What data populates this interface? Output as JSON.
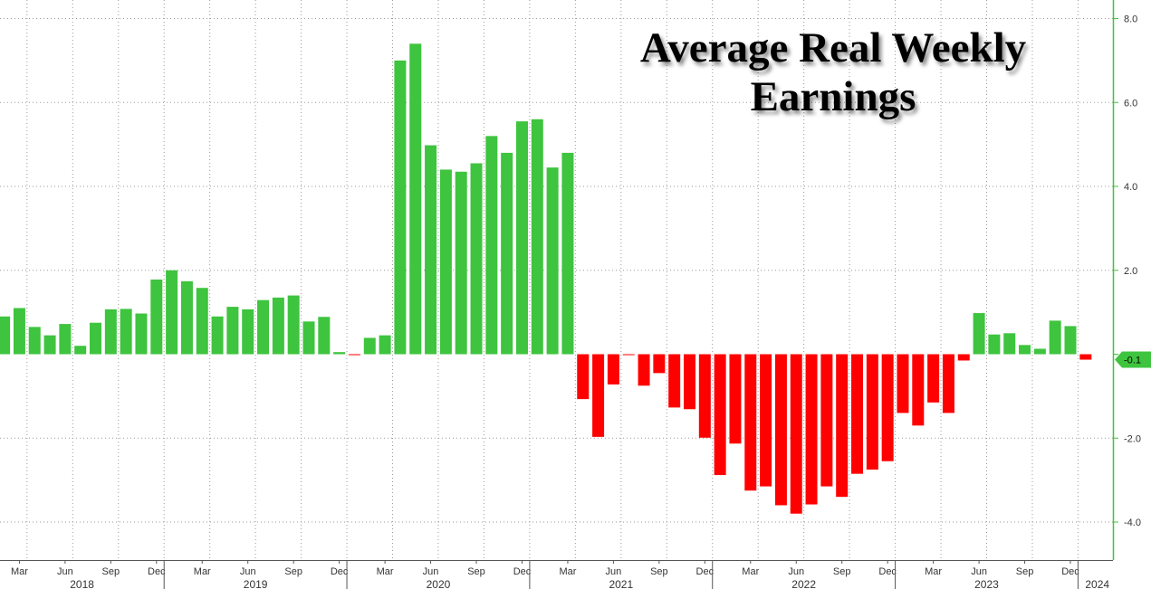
{
  "chart_data": {
    "type": "bar",
    "title_lines": [
      "Average Real Weekly",
      "Earnings"
    ],
    "ylim": [
      -4.6,
      8.4
    ],
    "yticks": [
      -4.0,
      -2.0,
      0,
      2.0,
      4.0,
      6.0,
      8.0
    ],
    "ytick_labels": [
      "-4.0",
      "-2.0",
      "",
      "2.0",
      "4.0",
      "6.0",
      "8.0"
    ],
    "last_value_label": "-0.1",
    "grid": true,
    "y_axis_side": "right",
    "colors": {
      "positive": "#3ec43e",
      "negative": "#ff0000",
      "axis": "#3ec43e",
      "grid": "#9a9a9a"
    },
    "month_ticks": [
      "Mar",
      "Jun",
      "Sep",
      "Dec",
      "Mar",
      "Jun",
      "Sep",
      "Dec",
      "Mar",
      "Jun",
      "Sep",
      "Dec",
      "Mar",
      "Jun",
      "Sep",
      "Dec",
      "Mar",
      "Jun",
      "Sep",
      "Dec",
      "Mar",
      "Jun",
      "Sep",
      "Dec"
    ],
    "year_labels": [
      "2018",
      "2019",
      "2020",
      "2021",
      "2022",
      "2023",
      "2024"
    ],
    "x": [
      "2018-02",
      "2018-03",
      "2018-04",
      "2018-05",
      "2018-06",
      "2018-07",
      "2018-08",
      "2018-09",
      "2018-10",
      "2018-11",
      "2018-12",
      "2019-01",
      "2019-02",
      "2019-03",
      "2019-04",
      "2019-05",
      "2019-06",
      "2019-07",
      "2019-08",
      "2019-09",
      "2019-10",
      "2019-11",
      "2019-12",
      "2020-01",
      "2020-02",
      "2020-03",
      "2020-04",
      "2020-05",
      "2020-06",
      "2020-07",
      "2020-08",
      "2020-09",
      "2020-10",
      "2020-11",
      "2020-12",
      "2021-01",
      "2021-02",
      "2021-03",
      "2021-04",
      "2021-05",
      "2021-06",
      "2021-07",
      "2021-08",
      "2021-09",
      "2021-10",
      "2021-11",
      "2021-12",
      "2022-01",
      "2022-02",
      "2022-03",
      "2022-04",
      "2022-05",
      "2022-06",
      "2022-07",
      "2022-08",
      "2022-09",
      "2022-10",
      "2022-11",
      "2022-12",
      "2023-01",
      "2023-02",
      "2023-03",
      "2023-04",
      "2023-05",
      "2023-06",
      "2023-07",
      "2023-08",
      "2023-09",
      "2023-10",
      "2023-11",
      "2023-12",
      "2024-01"
    ],
    "values": [
      0.9,
      1.1,
      0.65,
      0.45,
      0.72,
      0.2,
      0.75,
      1.07,
      1.08,
      0.97,
      1.78,
      2.0,
      1.74,
      1.58,
      0.9,
      1.13,
      1.07,
      1.29,
      1.35,
      1.4,
      0.78,
      0.89,
      0.05,
      -0.02,
      0.39,
      0.45,
      7.0,
      7.4,
      4.98,
      4.4,
      4.35,
      4.55,
      5.2,
      4.8,
      5.55,
      5.6,
      4.45,
      4.8,
      -1.07,
      -1.97,
      -0.72,
      -0.02,
      -0.75,
      -0.45,
      -1.27,
      -1.31,
      -1.99,
      -2.88,
      -2.13,
      -3.25,
      -3.15,
      -3.6,
      -3.8,
      -3.58,
      -3.15,
      -3.4,
      -2.85,
      -2.75,
      -2.55,
      -1.4,
      -1.7,
      -1.15,
      -1.4,
      -0.15,
      0.98,
      0.47,
      0.5,
      0.22,
      0.13,
      0.8,
      0.67,
      -0.13
    ]
  }
}
